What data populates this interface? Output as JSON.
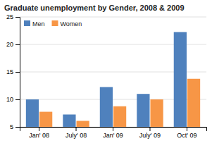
{
  "chart_data": {
    "type": "bar",
    "title": "Graduate unemployment by Gender, 2008 & 2009",
    "categories": [
      "Jan' 08",
      "July' 08",
      "Jan' 09",
      "July' 09",
      "Oct' 09"
    ],
    "series": [
      {
        "name": "Men",
        "color": "#4F81BD",
        "values": [
          10,
          7.25,
          12.25,
          11,
          22.25
        ]
      },
      {
        "name": "Women",
        "color": "#F79646",
        "values": [
          7.75,
          6.1,
          8.75,
          10,
          13.75
        ]
      }
    ],
    "ylim": [
      5,
      25
    ],
    "yticks": [
      5,
      10,
      15,
      20,
      25
    ],
    "grid": true,
    "legend": "upper left"
  }
}
